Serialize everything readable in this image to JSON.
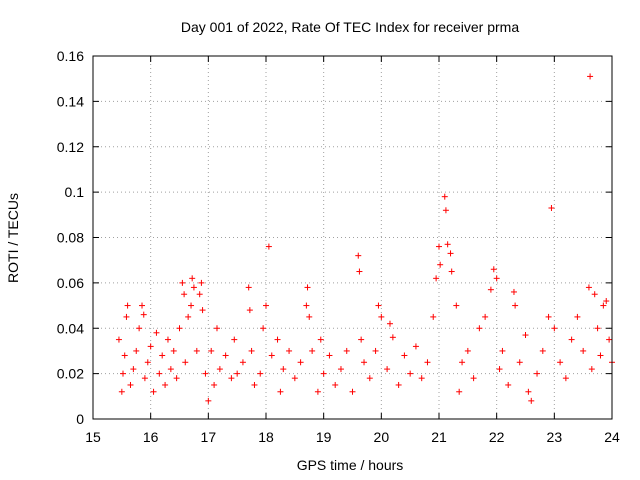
{
  "chart_data": {
    "type": "scatter",
    "title": "Day 001 of 2022, Rate Of TEC Index for receiver prma",
    "xlabel": "GPS time / hours",
    "ylabel": "ROTI / TECUs",
    "xlim": [
      15,
      24
    ],
    "ylim": [
      0,
      0.16
    ],
    "x_ticks": [
      15,
      16,
      17,
      18,
      19,
      20,
      21,
      22,
      23,
      24
    ],
    "x_tick_labels": [
      "15",
      "16",
      "17",
      "18",
      "19",
      "20",
      "21",
      "22",
      "23",
      "24"
    ],
    "y_ticks": [
      0,
      0.02,
      0.04,
      0.06,
      0.08,
      0.1,
      0.12,
      0.14,
      0.16
    ],
    "y_tick_labels": [
      "0",
      "0.02",
      "0.04",
      "0.06",
      "0.08",
      "0.1",
      "0.12",
      "0.14",
      "0.16"
    ],
    "grid": true,
    "marker": "plus",
    "marker_color": "#ff0000",
    "series": [
      {
        "name": "ROTI",
        "points": [
          [
            15.45,
            0.035
          ],
          [
            15.5,
            0.012
          ],
          [
            15.52,
            0.02
          ],
          [
            15.55,
            0.028
          ],
          [
            15.58,
            0.045
          ],
          [
            15.6,
            0.05
          ],
          [
            15.65,
            0.015
          ],
          [
            15.7,
            0.022
          ],
          [
            15.75,
            0.03
          ],
          [
            15.8,
            0.04
          ],
          [
            15.85,
            0.05
          ],
          [
            15.88,
            0.046
          ],
          [
            15.9,
            0.018
          ],
          [
            15.95,
            0.025
          ],
          [
            16.0,
            0.032
          ],
          [
            16.05,
            0.012
          ],
          [
            16.1,
            0.038
          ],
          [
            16.15,
            0.02
          ],
          [
            16.2,
            0.028
          ],
          [
            16.25,
            0.015
          ],
          [
            16.3,
            0.035
          ],
          [
            16.35,
            0.022
          ],
          [
            16.4,
            0.03
          ],
          [
            16.45,
            0.018
          ],
          [
            16.5,
            0.04
          ],
          [
            16.55,
            0.06
          ],
          [
            16.58,
            0.055
          ],
          [
            16.6,
            0.025
          ],
          [
            16.65,
            0.045
          ],
          [
            16.7,
            0.05
          ],
          [
            16.72,
            0.062
          ],
          [
            16.75,
            0.058
          ],
          [
            16.8,
            0.03
          ],
          [
            16.85,
            0.055
          ],
          [
            16.88,
            0.06
          ],
          [
            16.9,
            0.048
          ],
          [
            16.95,
            0.02
          ],
          [
            17.0,
            0.008
          ],
          [
            17.05,
            0.03
          ],
          [
            17.1,
            0.015
          ],
          [
            17.15,
            0.04
          ],
          [
            17.2,
            0.022
          ],
          [
            17.3,
            0.028
          ],
          [
            17.4,
            0.018
          ],
          [
            17.45,
            0.035
          ],
          [
            17.5,
            0.02
          ],
          [
            17.6,
            0.025
          ],
          [
            17.7,
            0.058
          ],
          [
            17.72,
            0.048
          ],
          [
            17.75,
            0.03
          ],
          [
            17.8,
            0.015
          ],
          [
            17.9,
            0.02
          ],
          [
            17.95,
            0.04
          ],
          [
            18.0,
            0.05
          ],
          [
            18.05,
            0.076
          ],
          [
            18.1,
            0.028
          ],
          [
            18.2,
            0.035
          ],
          [
            18.25,
            0.012
          ],
          [
            18.3,
            0.022
          ],
          [
            18.4,
            0.03
          ],
          [
            18.5,
            0.018
          ],
          [
            18.6,
            0.025
          ],
          [
            18.7,
            0.05
          ],
          [
            18.72,
            0.058
          ],
          [
            18.75,
            0.045
          ],
          [
            18.8,
            0.03
          ],
          [
            18.9,
            0.012
          ],
          [
            18.95,
            0.035
          ],
          [
            19.0,
            0.02
          ],
          [
            19.1,
            0.028
          ],
          [
            19.2,
            0.015
          ],
          [
            19.3,
            0.022
          ],
          [
            19.4,
            0.03
          ],
          [
            19.5,
            0.012
          ],
          [
            19.6,
            0.072
          ],
          [
            19.62,
            0.065
          ],
          [
            19.65,
            0.035
          ],
          [
            19.7,
            0.025
          ],
          [
            19.8,
            0.018
          ],
          [
            19.9,
            0.03
          ],
          [
            19.95,
            0.05
          ],
          [
            20.0,
            0.045
          ],
          [
            20.1,
            0.022
          ],
          [
            20.15,
            0.042
          ],
          [
            20.2,
            0.036
          ],
          [
            20.3,
            0.015
          ],
          [
            20.4,
            0.028
          ],
          [
            20.5,
            0.02
          ],
          [
            20.6,
            0.032
          ],
          [
            20.7,
            0.018
          ],
          [
            20.8,
            0.025
          ],
          [
            20.9,
            0.045
          ],
          [
            20.95,
            0.062
          ],
          [
            21.0,
            0.076
          ],
          [
            21.02,
            0.068
          ],
          [
            21.1,
            0.098
          ],
          [
            21.12,
            0.092
          ],
          [
            21.15,
            0.077
          ],
          [
            21.2,
            0.073
          ],
          [
            21.22,
            0.065
          ],
          [
            21.3,
            0.05
          ],
          [
            21.35,
            0.012
          ],
          [
            21.4,
            0.025
          ],
          [
            21.5,
            0.03
          ],
          [
            21.6,
            0.018
          ],
          [
            21.7,
            0.04
          ],
          [
            21.8,
            0.045
          ],
          [
            21.9,
            0.057
          ],
          [
            21.95,
            0.066
          ],
          [
            22.0,
            0.062
          ],
          [
            22.05,
            0.022
          ],
          [
            22.1,
            0.03
          ],
          [
            22.2,
            0.015
          ],
          [
            22.3,
            0.056
          ],
          [
            22.32,
            0.05
          ],
          [
            22.4,
            0.025
          ],
          [
            22.5,
            0.037
          ],
          [
            22.55,
            0.012
          ],
          [
            22.6,
            0.008
          ],
          [
            22.7,
            0.02
          ],
          [
            22.8,
            0.03
          ],
          [
            22.9,
            0.045
          ],
          [
            22.95,
            0.093
          ],
          [
            23.0,
            0.04
          ],
          [
            23.1,
            0.025
          ],
          [
            23.2,
            0.018
          ],
          [
            23.3,
            0.035
          ],
          [
            23.4,
            0.045
          ],
          [
            23.5,
            0.03
          ],
          [
            23.6,
            0.058
          ],
          [
            23.62,
            0.151
          ],
          [
            23.65,
            0.022
          ],
          [
            23.7,
            0.055
          ],
          [
            23.75,
            0.04
          ],
          [
            23.8,
            0.028
          ],
          [
            23.85,
            0.05
          ],
          [
            23.9,
            0.052
          ],
          [
            23.95,
            0.035
          ],
          [
            24.0,
            0.025
          ]
        ]
      }
    ]
  }
}
